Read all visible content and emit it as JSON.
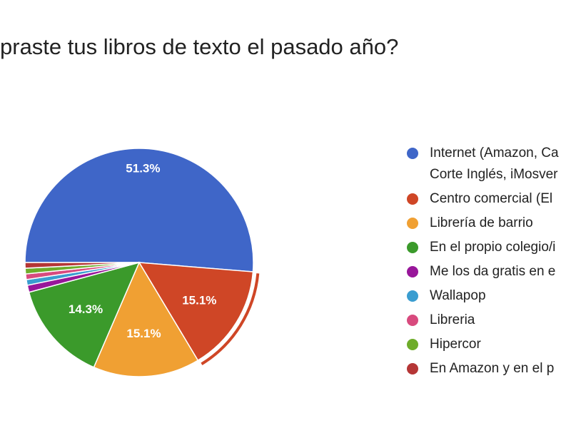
{
  "title": "praste tus libros de texto el pasado año?",
  "chart_data": {
    "type": "pie",
    "legend_position": "right",
    "slices": [
      {
        "label": "Internet (Amazon, Ca",
        "label_line2": "Corte Inglés, iMosver",
        "value": 51.3,
        "display": "51.3%",
        "color": "#3f66c8"
      },
      {
        "label": "Centro comercial (El",
        "value": 15.1,
        "display": "15.1%",
        "color": "#cf4626",
        "selected": true
      },
      {
        "label": "Librería de barrio",
        "value": 15.1,
        "display": "15.1%",
        "color": "#f0a033"
      },
      {
        "label": "En el propio colegio/i",
        "value": 14.3,
        "display": "14.3%",
        "color": "#3b9a2b"
      },
      {
        "label": "Me los da gratis en e",
        "value": 1.0,
        "display": "",
        "color": "#98169a"
      },
      {
        "label": "Wallapop",
        "value": 0.8,
        "display": "",
        "color": "#3a9dd0"
      },
      {
        "label": "Libreria",
        "value": 0.8,
        "display": "",
        "color": "#d84a7e"
      },
      {
        "label": "Hipercor",
        "value": 0.8,
        "display": "",
        "color": "#6eac2a"
      },
      {
        "label": "En Amazon y en el p",
        "value": 0.8,
        "display": "",
        "color": "#b53636"
      }
    ]
  }
}
